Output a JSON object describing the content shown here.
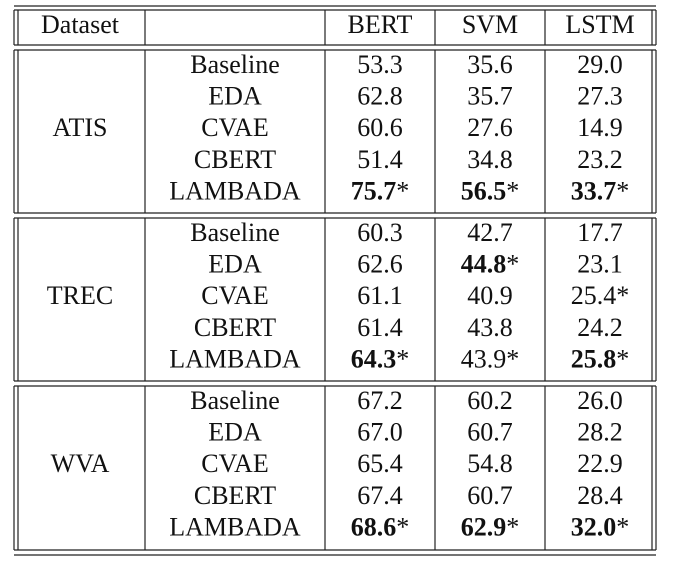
{
  "table": {
    "header": [
      "Dataset",
      "BERT",
      "SVM",
      "LSTM"
    ],
    "groups": [
      {
        "name": "ATIS",
        "rows": [
          {
            "method": "Baseline",
            "cells": [
              {
                "text": "53.3"
              },
              {
                "text": "35.6"
              },
              {
                "text": "29.0"
              }
            ]
          },
          {
            "method": "EDA",
            "cells": [
              {
                "text": "62.8"
              },
              {
                "text": "35.7"
              },
              {
                "text": "27.3"
              }
            ]
          },
          {
            "method": "CVAE",
            "cells": [
              {
                "text": "60.6"
              },
              {
                "text": "27.6"
              },
              {
                "text": "14.9"
              }
            ]
          },
          {
            "method": "CBERT",
            "cells": [
              {
                "text": "51.4"
              },
              {
                "text": "34.8"
              },
              {
                "text": "23.2"
              }
            ]
          },
          {
            "method": "LAMBADA",
            "cells": [
              {
                "text": "75.7",
                "bold": true,
                "note": "*"
              },
              {
                "text": "56.5",
                "bold": true,
                "note": "*"
              },
              {
                "text": "33.7",
                "bold": true,
                "note": "*"
              }
            ]
          }
        ]
      },
      {
        "name": "TREC",
        "rows": [
          {
            "method": "Baseline",
            "cells": [
              {
                "text": "60.3"
              },
              {
                "text": "42.7"
              },
              {
                "text": "17.7"
              }
            ]
          },
          {
            "method": "EDA",
            "cells": [
              {
                "text": "62.6"
              },
              {
                "text": "44.8",
                "bold": true,
                "note": "*"
              },
              {
                "text": "23.1"
              }
            ]
          },
          {
            "method": "CVAE",
            "cells": [
              {
                "text": "61.1"
              },
              {
                "text": "40.9"
              },
              {
                "text": "25.4",
                "note": "*"
              }
            ]
          },
          {
            "method": "CBERT",
            "cells": [
              {
                "text": "61.4"
              },
              {
                "text": "43.8"
              },
              {
                "text": "24.2"
              }
            ]
          },
          {
            "method": "LAMBADA",
            "cells": [
              {
                "text": "64.3",
                "bold": true,
                "note": "*"
              },
              {
                "text": "43.9",
                "note": "*"
              },
              {
                "text": "25.8",
                "bold": true,
                "note": "*"
              }
            ]
          }
        ]
      },
      {
        "name": "WVA",
        "rows": [
          {
            "method": "Baseline",
            "cells": [
              {
                "text": "67.2"
              },
              {
                "text": "60.2"
              },
              {
                "text": "26.0"
              }
            ]
          },
          {
            "method": "EDA",
            "cells": [
              {
                "text": "67.0"
              },
              {
                "text": "60.7"
              },
              {
                "text": "28.2"
              }
            ]
          },
          {
            "method": "CVAE",
            "cells": [
              {
                "text": "65.4"
              },
              {
                "text": "54.8"
              },
              {
                "text": "22.9"
              }
            ]
          },
          {
            "method": "CBERT",
            "cells": [
              {
                "text": "67.4"
              },
              {
                "text": "60.7"
              },
              {
                "text": "28.4"
              }
            ]
          },
          {
            "method": "LAMBADA",
            "cells": [
              {
                "text": "68.6",
                "bold": true,
                "note": "*"
              },
              {
                "text": "62.9",
                "bold": true,
                "note": "*"
              },
              {
                "text": "32.0",
                "bold": true,
                "note": "*"
              }
            ]
          }
        ]
      }
    ]
  }
}
